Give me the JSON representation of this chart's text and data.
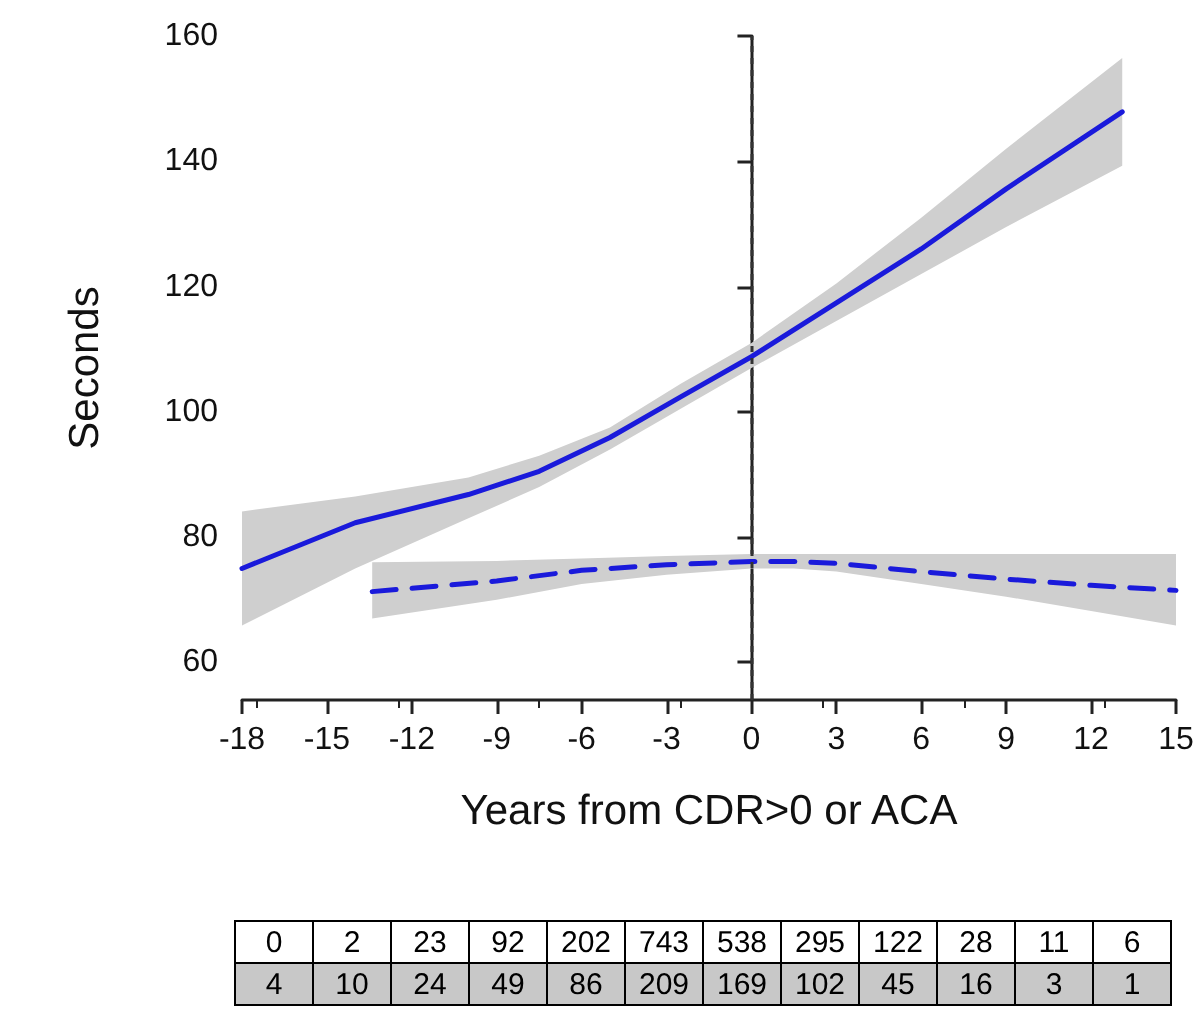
{
  "chart_data": {
    "type": "line",
    "xlabel": "Years from CDR>0 or ACA",
    "ylabel": "Seconds",
    "xlim": [
      -18,
      15
    ],
    "xticks": [
      -18,
      -15,
      -12,
      -9,
      -6,
      -3,
      0,
      3,
      6,
      9,
      12,
      15
    ],
    "ylim": [
      54,
      160
    ],
    "yticks": [
      60,
      80,
      100,
      120,
      140,
      160
    ],
    "grid": false,
    "marker": "none",
    "series": [
      {
        "color": "#1a1adb",
        "line_style": "solid",
        "x": [
          -18,
          -14,
          -10,
          -7.5,
          -5,
          -2.5,
          0,
          3,
          6,
          9,
          13.1
        ],
        "values": [
          75,
          82.3,
          86.8,
          90.5,
          95.9,
          102.4,
          108.8,
          117.4,
          126,
          135.6,
          147.9
        ],
        "lower": [
          65.9,
          75,
          83,
          88,
          94,
          100.5,
          107,
          114.5,
          122,
          129.5,
          139.3
        ],
        "upper": [
          84.1,
          86.5,
          89.5,
          93,
          97.5,
          104.5,
          111,
          120.5,
          131,
          142,
          156.5
        ]
      },
      {
        "color": "#1a1adb",
        "line_style": "dashed",
        "x": [
          -13.4,
          -9,
          -6,
          -3,
          0,
          1.5,
          3,
          6,
          9,
          12,
          15
        ],
        "values": [
          71.3,
          73,
          74.7,
          75.6,
          76.1,
          76.1,
          75.8,
          74.5,
          73.3,
          72.3,
          71.5
        ],
        "lower": [
          67,
          70,
          72.5,
          74,
          75,
          75,
          74.5,
          72.5,
          70.5,
          68.2,
          65.9
        ],
        "upper": [
          76,
          76.2,
          76.6,
          77,
          77.3,
          77.3,
          77.3,
          77.3,
          77.3,
          77.3,
          77.3
        ]
      }
    ],
    "ref_lines": [
      {
        "axis": "x",
        "value": 0,
        "color": "#333333",
        "line_style": "dotted"
      }
    ],
    "annotations": [
      "0",
      "2",
      "23",
      "92",
      "202",
      "743",
      "538",
      "295",
      "122",
      "28",
      "11",
      "6",
      "4",
      "10",
      "24",
      "49",
      "86",
      "209",
      "169",
      "102",
      "45",
      "16",
      "3",
      "1"
    ]
  }
}
